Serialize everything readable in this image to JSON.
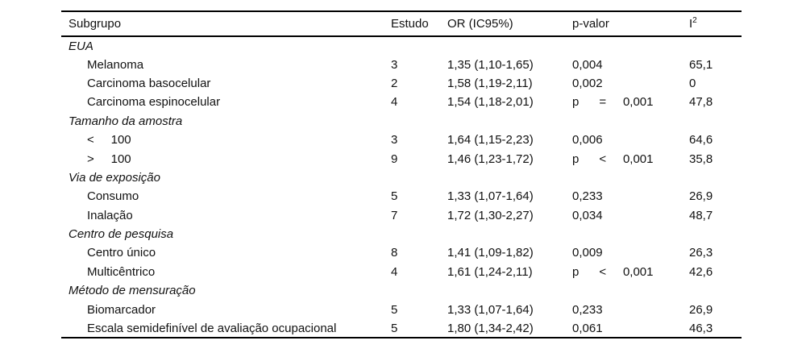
{
  "page": {
    "background_color": "#ffffff",
    "text_color": "#111111",
    "rule_color": "#000000"
  },
  "table": {
    "columns": [
      {
        "label": "Subgrupo"
      },
      {
        "label": "Estudo"
      },
      {
        "label": "OR (IC95%)"
      },
      {
        "label": "p-valor"
      },
      {
        "label": "I",
        "superscript": "2"
      }
    ],
    "sections": [
      {
        "title": "EUA",
        "rows": [
          {
            "label": "Melanoma",
            "estudo": "3",
            "or_ic95": "1,35 (1,10-1,65)",
            "p_valor": "0,004",
            "i2": "65,1"
          },
          {
            "label": "Carcinoma basocelular",
            "estudo": "2",
            "or_ic95": "1,58 (1,19-2,11)",
            "p_valor": "0,002",
            "i2": "0"
          },
          {
            "label": "Carcinoma espinocelular",
            "estudo": "4",
            "or_ic95": "1,54 (1,18-2,01)",
            "p_valor": "p      =     0,001",
            "i2": "47,8"
          }
        ]
      },
      {
        "title": "Tamanho da amostra",
        "rows": [
          {
            "label": "<     100",
            "estudo": "3",
            "or_ic95": "1,64 (1,15-2,23)",
            "p_valor": "0,006",
            "i2": "64,6"
          },
          {
            "label": ">     100",
            "estudo": "9",
            "or_ic95": "1,46 (1,23-1,72)",
            "p_valor": "p      <     0,001",
            "i2": "35,8"
          }
        ]
      },
      {
        "title": "Via de exposição",
        "rows": [
          {
            "label": "Consumo",
            "estudo": "5",
            "or_ic95": "1,33 (1,07-1,64)",
            "p_valor": "0,233",
            "i2": "26,9"
          },
          {
            "label": "Inalação",
            "estudo": "7",
            "or_ic95": "1,72 (1,30-2,27)",
            "p_valor": "0,034",
            "i2": "48,7"
          }
        ]
      },
      {
        "title": "Centro de pesquisa",
        "rows": [
          {
            "label": "Centro único",
            "estudo": "8",
            "or_ic95": "1,41 (1,09-1,82)",
            "p_valor": "0,009",
            "i2": "26,3"
          },
          {
            "label": "Multicêntrico",
            "estudo": "4",
            "or_ic95": "1,61 (1,24-2,11)",
            "p_valor": "p      <     0,001",
            "i2": "42,6"
          }
        ]
      },
      {
        "title": "Método de mensuração",
        "rows": [
          {
            "label": "Biomarcador",
            "estudo": "5",
            "or_ic95": "1,33 (1,07-1,64)",
            "p_valor": "0,233",
            "i2": "26,9"
          },
          {
            "label": "Escala semidefinível de avaliação ocupacional",
            "estudo": "5",
            "or_ic95": "1,80 (1,34-2,42)",
            "p_valor": "0,061",
            "i2": "46,3"
          }
        ]
      }
    ]
  }
}
